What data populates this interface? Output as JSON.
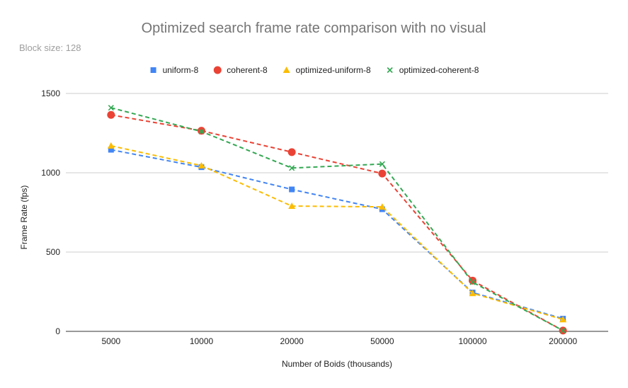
{
  "chart_data": {
    "type": "line",
    "title": "Optimized search frame rate comparison with no visual",
    "subtitle": "Block size: 128",
    "xlabel": "Number of Boids (thousands)",
    "ylabel": "Frame Rate (fps)",
    "categories": [
      "5000",
      "10000",
      "20000",
      "50000",
      "100000",
      "200000"
    ],
    "ylim": [
      0,
      1500
    ],
    "yticks": [
      0,
      500,
      1000,
      1500
    ],
    "grid": true,
    "legend_position": "top",
    "series": [
      {
        "name": "uniform-8",
        "color": "#4285f4",
        "marker": "square",
        "values": [
          1145,
          1035,
          895,
          770,
          245,
          80
        ]
      },
      {
        "name": "coherent-8",
        "color": "#ea4335",
        "marker": "circle",
        "values": [
          1365,
          1265,
          1130,
          995,
          320,
          5
        ]
      },
      {
        "name": "optimized-uniform-8",
        "color": "#fbbc04",
        "marker": "triangle",
        "values": [
          1170,
          1045,
          790,
          785,
          240,
          75
        ]
      },
      {
        "name": "optimized-coherent-8",
        "color": "#34a853",
        "marker": "x",
        "values": [
          1410,
          1260,
          1030,
          1055,
          310,
          5
        ]
      }
    ]
  }
}
